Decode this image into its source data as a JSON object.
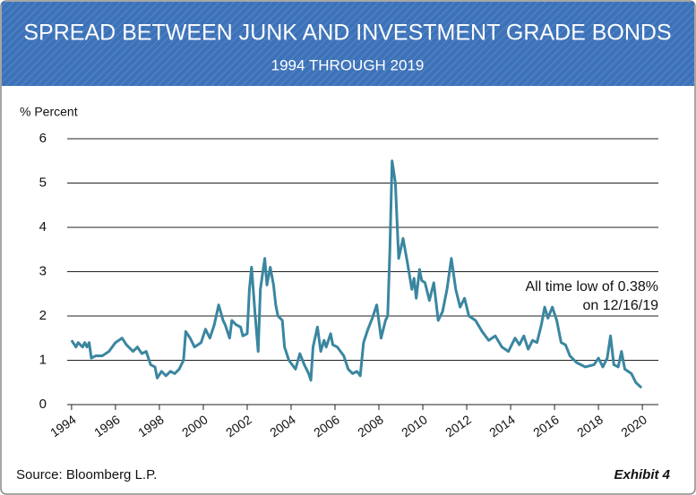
{
  "chart_data": {
    "type": "line",
    "title": "SPREAD BETWEEN JUNK AND INVESTMENT GRADE BONDS",
    "subtitle": "1994 THROUGH 2019",
    "y_label": "% Percent",
    "annotation": [
      "All time low of 0.38%",
      "on 12/16/19"
    ],
    "source": "Source: Bloomberg L.P.",
    "exhibit": "Exhibit 4",
    "color": "#3a86a0",
    "grid": true,
    "xlim": [
      1993.8,
      2020.73
    ],
    "xticks": [
      1994,
      1996,
      1998,
      2000,
      2002,
      2004,
      2006,
      2008,
      2010,
      2012,
      2014,
      2016,
      2018,
      2020
    ],
    "ylim": [
      0,
      6
    ],
    "yticks": [
      0,
      1,
      2,
      3,
      4,
      5,
      6
    ],
    "x": [
      1994.0,
      1994.2,
      1994.3,
      1994.5,
      1994.6,
      1994.7,
      1994.8,
      1994.9,
      1995.1,
      1995.4,
      1995.7,
      1996.0,
      1996.3,
      1996.5,
      1996.8,
      1997.0,
      1997.2,
      1997.4,
      1997.6,
      1997.8,
      1997.9,
      1998.1,
      1998.3,
      1998.5,
      1998.7,
      1998.9,
      1999.1,
      1999.2,
      1999.4,
      1999.6,
      1999.9,
      2000.1,
      2000.3,
      2000.5,
      2000.7,
      2000.9,
      2001.0,
      2001.2,
      2001.3,
      2001.5,
      2001.7,
      2001.8,
      2002.0,
      2002.1,
      2002.2,
      2002.35,
      2002.5,
      2002.6,
      2002.8,
      2002.9,
      2003.05,
      2003.2,
      2003.3,
      2003.4,
      2003.6,
      2003.7,
      2003.9,
      2004.2,
      2004.4,
      2004.6,
      2004.8,
      2004.9,
      2005.0,
      2005.2,
      2005.35,
      2005.5,
      2005.6,
      2005.8,
      2005.9,
      2006.1,
      2006.4,
      2006.6,
      2006.8,
      2007.0,
      2007.15,
      2007.3,
      2007.5,
      2007.7,
      2007.9,
      2008.1,
      2008.3,
      2008.4,
      2008.5,
      2008.6,
      2008.75,
      2008.9,
      2009.1,
      2009.3,
      2009.5,
      2009.6,
      2009.7,
      2009.85,
      2009.95,
      2010.1,
      2010.3,
      2010.5,
      2010.7,
      2010.9,
      2011.1,
      2011.3,
      2011.5,
      2011.7,
      2011.9,
      2012.1,
      2012.4,
      2012.7,
      2013.0,
      2013.3,
      2013.6,
      2013.9,
      2014.2,
      2014.4,
      2014.6,
      2014.8,
      2015.0,
      2015.2,
      2015.4,
      2015.55,
      2015.7,
      2015.9,
      2016.1,
      2016.3,
      2016.5,
      2016.7,
      2017.0,
      2017.4,
      2017.8,
      2018.0,
      2018.2,
      2018.4,
      2018.55,
      2018.7,
      2018.9,
      2019.05,
      2019.2,
      2019.5,
      2019.7,
      2019.96
    ],
    "values": [
      1.45,
      1.3,
      1.4,
      1.3,
      1.4,
      1.3,
      1.4,
      1.05,
      1.1,
      1.1,
      1.2,
      1.4,
      1.5,
      1.35,
      1.2,
      1.3,
      1.15,
      1.2,
      0.9,
      0.85,
      0.6,
      0.75,
      0.65,
      0.75,
      0.7,
      0.8,
      1.0,
      1.65,
      1.5,
      1.3,
      1.4,
      1.7,
      1.5,
      1.8,
      2.25,
      1.9,
      1.8,
      1.5,
      1.9,
      1.8,
      1.75,
      1.55,
      1.6,
      2.6,
      3.1,
      2.1,
      1.2,
      2.6,
      3.3,
      2.7,
      3.1,
      2.7,
      2.25,
      2.0,
      1.9,
      1.3,
      1.0,
      0.8,
      1.15,
      0.9,
      0.7,
      0.55,
      1.3,
      1.75,
      1.2,
      1.45,
      1.3,
      1.6,
      1.35,
      1.3,
      1.1,
      0.8,
      0.7,
      0.75,
      0.65,
      1.4,
      1.7,
      1.95,
      2.25,
      1.5,
      1.9,
      2.0,
      3.5,
      5.5,
      5.0,
      3.3,
      3.75,
      3.2,
      2.6,
      2.85,
      2.4,
      3.05,
      2.8,
      2.75,
      2.35,
      2.75,
      1.9,
      2.1,
      2.6,
      3.3,
      2.6,
      2.2,
      2.4,
      2.0,
      1.9,
      1.65,
      1.45,
      1.55,
      1.3,
      1.2,
      1.5,
      1.35,
      1.55,
      1.25,
      1.45,
      1.4,
      1.8,
      2.2,
      1.95,
      2.2,
      1.9,
      1.4,
      1.35,
      1.1,
      0.95,
      0.85,
      0.9,
      1.05,
      0.85,
      1.05,
      1.55,
      0.9,
      0.85,
      1.2,
      0.8,
      0.7,
      0.5,
      0.38
    ]
  }
}
